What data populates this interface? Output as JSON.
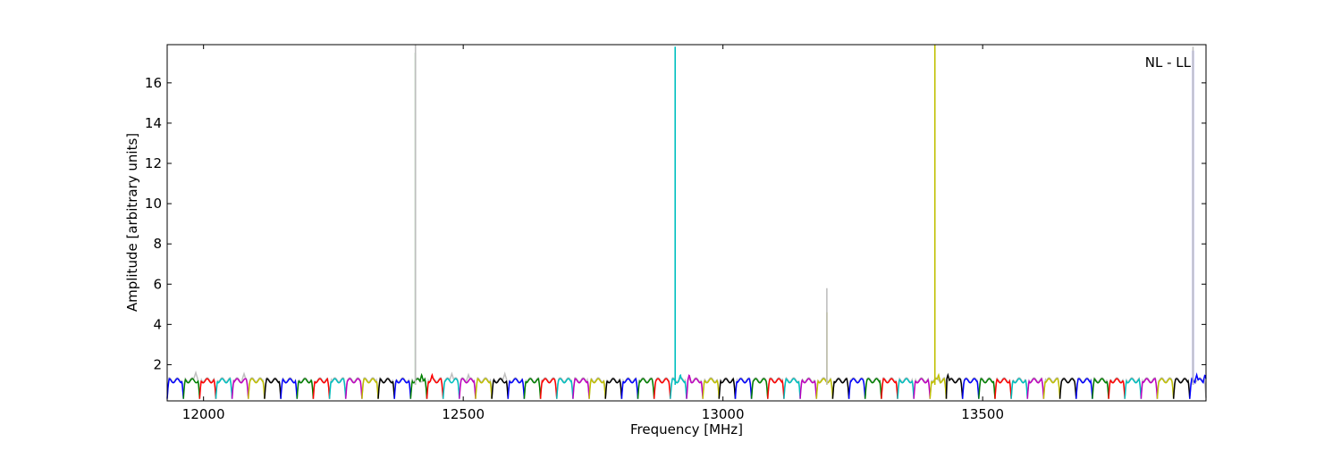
{
  "chart_data": {
    "type": "line",
    "title": "",
    "xlabel": "Frequency [MHz]",
    "ylabel": "Amplitude [arbitrary units]",
    "annotation": "NL - LL",
    "xlim": [
      11930,
      13930
    ],
    "ylim": [
      0.2,
      17.9
    ],
    "x_ticks": [
      12000,
      12500,
      13000,
      13500
    ],
    "y_ticks": [
      2,
      4,
      6,
      8,
      10,
      12,
      14,
      16
    ],
    "grid": false,
    "legend": "none",
    "channel_width_mhz": 31.25,
    "channel_start_mhz": 11930,
    "channel_color_cycle": [
      "#0000ff",
      "#008000",
      "#ff0000",
      "#00bfbf",
      "#bf00bf",
      "#bfbf00",
      "#000000"
    ],
    "background_trace_color": "#bfbfbf",
    "channel_baseline": {
      "trough_amplitude": 0.3,
      "plateau_amplitude": 1.2,
      "plateau_ripple": 0.1
    },
    "spikes": [
      {
        "x": 12408,
        "y": 17.5,
        "color": "#008000"
      },
      {
        "x": 12408,
        "y": 17.9,
        "color": "#bfbfbf"
      },
      {
        "x": 12908,
        "y": 17.8,
        "color": "#00bfbf"
      },
      {
        "x": 13200,
        "y": 4.6,
        "color": "#bfbf00"
      },
      {
        "x": 13200,
        "y": 5.8,
        "color": "#bfbfbf"
      },
      {
        "x": 13408,
        "y": 17.9,
        "color": "#bfbf00"
      },
      {
        "x": 13905,
        "y": 17.6,
        "color": "#0000ff"
      },
      {
        "x": 13905,
        "y": 17.8,
        "color": "#bfbfbf"
      }
    ],
    "spike_side_lobes": [
      {
        "x": 12420,
        "y": 1.5
      },
      {
        "x": 12440,
        "y": 1.5
      },
      {
        "x": 12918,
        "y": 1.5
      },
      {
        "x": 12935,
        "y": 1.5
      },
      {
        "x": 13415,
        "y": 1.5
      },
      {
        "x": 13433,
        "y": 1.5
      },
      {
        "x": 13912,
        "y": 1.5
      },
      {
        "x": 13928,
        "y": 1.5
      }
    ],
    "background_bumps": [
      {
        "x": 11985,
        "y": 1.6
      },
      {
        "x": 12078,
        "y": 1.55
      },
      {
        "x": 12478,
        "y": 1.55
      },
      {
        "x": 12510,
        "y": 1.5
      },
      {
        "x": 12580,
        "y": 1.55
      }
    ]
  }
}
